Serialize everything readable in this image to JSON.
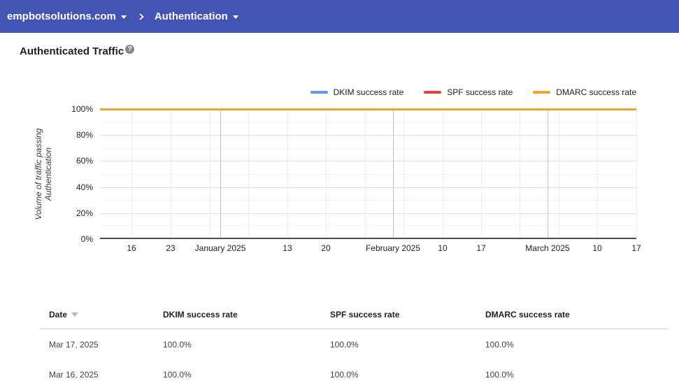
{
  "colors": {
    "topbar_bg": "#4355B4",
    "dkim_blue": "#5E97F6",
    "spf_red": "#DB4437",
    "dmarc_orange": "#F2A32C"
  },
  "topbar": {
    "breadcrumb": [
      {
        "label": "empbotsolutions.com",
        "dropdown": true
      },
      {
        "label": "Authentication",
        "dropdown": true
      }
    ]
  },
  "page": {
    "title": "Authenticated Traffic",
    "help_glyph": "?"
  },
  "chart_data": {
    "type": "line",
    "title": "Authenticated Traffic",
    "xlabel": "",
    "ylabel": "Volume of traffic passing Authentication",
    "ylabel_lines": [
      "Volume of traffic passing",
      "Authentication"
    ],
    "ylim": [
      0,
      100
    ],
    "y_unit": "%",
    "grid": true,
    "legend_position": "top-right",
    "x_range": [
      "Dec 10, 2024",
      "Mar 17, 2025"
    ],
    "y_major_ticks": [
      {
        "value": 0,
        "label": "0%"
      },
      {
        "value": 20,
        "label": "20%"
      },
      {
        "value": 40,
        "label": "40%"
      },
      {
        "value": 60,
        "label": "60%"
      },
      {
        "value": 80,
        "label": "80%"
      },
      {
        "value": 100,
        "label": "100%"
      }
    ],
    "y_minor_values": [
      10,
      30,
      50,
      70,
      90
    ],
    "x_gridlines": [
      {
        "pos": 0.0587,
        "type": "week"
      },
      {
        "pos": 0.1317,
        "type": "week"
      },
      {
        "pos": 0.2047,
        "type": "week"
      },
      {
        "pos": 0.2243,
        "type": "month"
      },
      {
        "pos": 0.2764,
        "type": "week"
      },
      {
        "pos": 0.3494,
        "type": "week"
      },
      {
        "pos": 0.4211,
        "type": "week"
      },
      {
        "pos": 0.4941,
        "type": "week"
      },
      {
        "pos": 0.5463,
        "type": "month"
      },
      {
        "pos": 0.5658,
        "type": "week"
      },
      {
        "pos": 0.6389,
        "type": "week"
      },
      {
        "pos": 0.7106,
        "type": "week"
      },
      {
        "pos": 0.7823,
        "type": "week"
      },
      {
        "pos": 0.8344,
        "type": "month"
      },
      {
        "pos": 0.8553,
        "type": "week"
      },
      {
        "pos": 0.927,
        "type": "week"
      },
      {
        "pos": 1.0,
        "type": "week"
      }
    ],
    "x_tick_labels": [
      {
        "pos": 0.0587,
        "text": "16"
      },
      {
        "pos": 0.1317,
        "text": "23"
      },
      {
        "pos": 0.2243,
        "text": "January 2025"
      },
      {
        "pos": 0.3494,
        "text": "13"
      },
      {
        "pos": 0.4211,
        "text": "20"
      },
      {
        "pos": 0.5463,
        "text": "February 2025"
      },
      {
        "pos": 0.6389,
        "text": "10"
      },
      {
        "pos": 0.7106,
        "text": "17"
      },
      {
        "pos": 0.8344,
        "text": "March 2025"
      },
      {
        "pos": 0.927,
        "text": "10"
      },
      {
        "pos": 1.0,
        "text": "17"
      }
    ],
    "series": [
      {
        "name": "DKIM success rate",
        "color": "#5E97F6",
        "x": [
          "2024-12-10",
          "2025-03-17"
        ],
        "values": [
          100,
          100
        ]
      },
      {
        "name": "SPF success rate",
        "color": "#DB4437",
        "x": [
          "2024-12-10",
          "2025-03-17"
        ],
        "values": [
          100,
          100
        ]
      },
      {
        "name": "DMARC success rate",
        "color": "#F2A32C",
        "x": [
          "2024-12-10",
          "2025-03-17"
        ],
        "values": [
          100,
          100
        ]
      }
    ]
  },
  "table": {
    "columns": [
      {
        "label": "Date",
        "sorted": "desc"
      },
      {
        "label": "DKIM success rate"
      },
      {
        "label": "SPF success rate"
      },
      {
        "label": "DMARC success rate"
      }
    ],
    "rows": [
      {
        "cells": [
          "Mar 17, 2025",
          "100.0%",
          "100.0%",
          "100.0%"
        ]
      },
      {
        "cells": [
          "Mar 16, 2025",
          "100.0%",
          "100.0%",
          "100.0%"
        ]
      }
    ]
  }
}
